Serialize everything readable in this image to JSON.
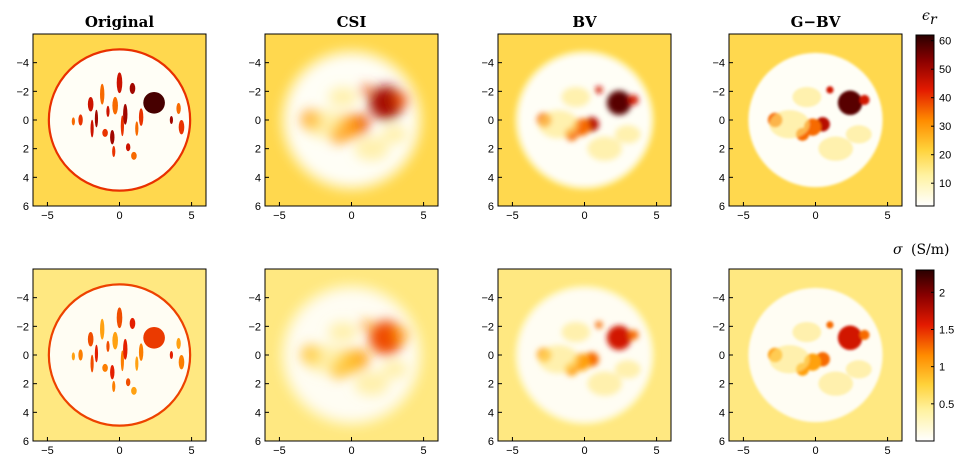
{
  "chart_data": {
    "type": "heatmap",
    "columns": [
      "Original",
      "CSI",
      "BV",
      "G−BV"
    ],
    "xlim": [
      -6,
      6
    ],
    "ylim": [
      -6,
      6
    ],
    "y_reversed": true,
    "x_ticks": [
      -5,
      0,
      5
    ],
    "y_ticks": [
      -4,
      -2,
      0,
      2,
      4,
      6
    ],
    "colormap": "hot (reversed)",
    "colormap_stops": [
      "#ffffff",
      "#fff2a0",
      "#ffd23a",
      "#ff8c00",
      "#e31a00",
      "#8a0000",
      "#2a0000"
    ],
    "rows": [
      {
        "quantity": "relative permittivity",
        "colorbar_label": "ϵ",
        "colorbar_sub": "r",
        "colorbar_unit": "",
        "colorbar_range": [
          2,
          62
        ],
        "colorbar_ticks": [
          10,
          20,
          30,
          40,
          50,
          60
        ],
        "background_value": 20,
        "inner_value": 3,
        "ring_value": 40,
        "inner_region": {
          "center": [
            0,
            0
          ],
          "radius": 4.9
        }
      },
      {
        "quantity": "conductivity",
        "colorbar_label": "σ",
        "colorbar_sub": "",
        "colorbar_unit": "(S/m)",
        "colorbar_range": [
          0,
          2.3
        ],
        "colorbar_ticks": [
          0.5,
          1,
          1.5,
          2
        ],
        "colorbar_tick_labels": [
          "0.5",
          "1",
          "1.5",
          "2"
        ],
        "background_value": 0.5,
        "inner_value": 0.05,
        "ring_value": 1.4,
        "inner_region": {
          "center": [
            0,
            0
          ],
          "radius": 4.9
        }
      }
    ]
  }
}
